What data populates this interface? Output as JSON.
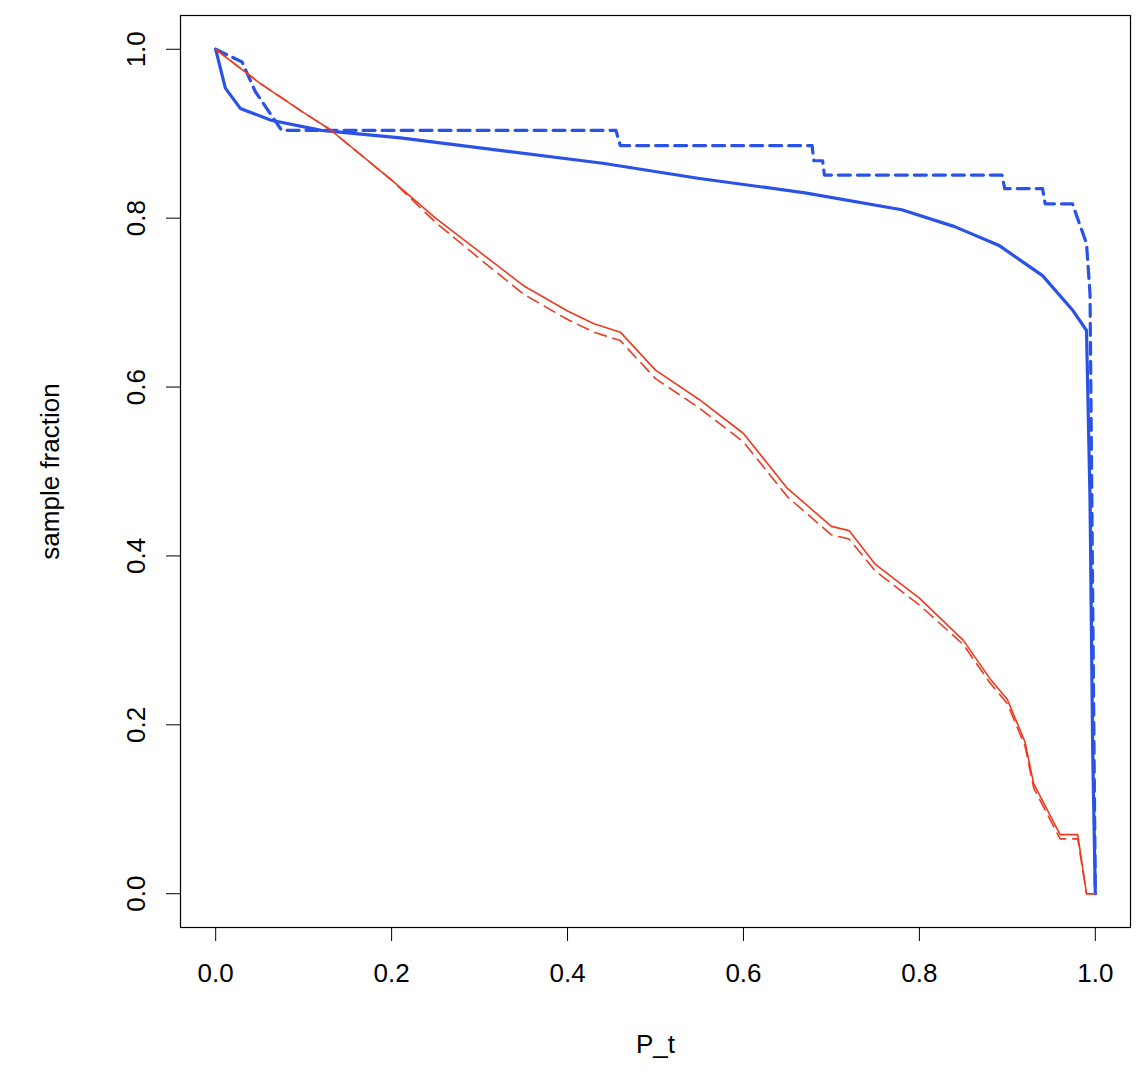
{
  "chart_data": {
    "type": "line",
    "x_label": "P_t",
    "y_label": "sample fraction",
    "xlim": [
      -0.04,
      1.04
    ],
    "ylim": [
      -0.04,
      1.04
    ],
    "xticks": [
      {
        "value": 0,
        "label": "0.0"
      },
      0.2,
      0.4,
      0.6,
      0.8,
      {
        "value": 1,
        "label": "1.0"
      }
    ],
    "yticks": [
      {
        "value": 0,
        "label": "0.0"
      },
      0.2,
      0.4,
      0.6,
      0.8,
      {
        "value": 1,
        "label": "1.0"
      }
    ],
    "grid": false,
    "series": [
      {
        "color": "#2a52e6",
        "line_style": "solid",
        "x": [
          0,
          0.011,
          0.028,
          0.063,
          0.12,
          0.21,
          0.325,
          0.44,
          0.55,
          0.67,
          0.78,
          0.84,
          0.89,
          0.94,
          0.975,
          0.99,
          0.994,
          0.997,
          1.0
        ],
        "values": [
          1.0,
          0.954,
          0.93,
          0.916,
          0.904,
          0.895,
          0.88,
          0.865,
          0.847,
          0.83,
          0.81,
          0.79,
          0.768,
          0.732,
          0.69,
          0.667,
          0.466,
          0.17,
          0.0
        ]
      },
      {
        "color": "#2a52e6",
        "line_style": "dashed",
        "x": [
          0,
          0.03,
          0.045,
          0.075,
          0.455,
          0.46,
          0.678,
          0.68,
          0.69,
          0.692,
          0.894,
          0.897,
          0.94,
          0.943,
          0.974,
          0.99,
          0.994,
          1.0
        ],
        "values": [
          1.0,
          0.985,
          0.95,
          0.904,
          0.904,
          0.886,
          0.886,
          0.868,
          0.868,
          0.851,
          0.851,
          0.835,
          0.835,
          0.817,
          0.817,
          0.77,
          0.71,
          0.0
        ]
      },
      {
        "color": "#f03a20",
        "line_style": "solid",
        "x": [
          0,
          0.05,
          0.1,
          0.13,
          0.2,
          0.25,
          0.3,
          0.35,
          0.4,
          0.43,
          0.46,
          0.5,
          0.55,
          0.6,
          0.65,
          0.7,
          0.72,
          0.75,
          0.8,
          0.85,
          0.88,
          0.9,
          0.92,
          0.93,
          0.96,
          0.98,
          0.99,
          1.0
        ],
        "values": [
          1.0,
          0.96,
          0.925,
          0.905,
          0.845,
          0.8,
          0.76,
          0.72,
          0.69,
          0.675,
          0.665,
          0.62,
          0.585,
          0.545,
          0.48,
          0.435,
          0.43,
          0.39,
          0.35,
          0.3,
          0.255,
          0.23,
          0.18,
          0.13,
          0.07,
          0.07,
          0.0,
          0.0
        ]
      },
      {
        "color": "#f03a20",
        "line_style": "dashed",
        "x": [
          0,
          0.05,
          0.1,
          0.13,
          0.2,
          0.25,
          0.3,
          0.35,
          0.4,
          0.43,
          0.46,
          0.5,
          0.55,
          0.6,
          0.65,
          0.7,
          0.72,
          0.75,
          0.8,
          0.85,
          0.88,
          0.9,
          0.92,
          0.93,
          0.96,
          0.98,
          0.99,
          1.0
        ],
        "values": [
          1.0,
          0.96,
          0.925,
          0.905,
          0.845,
          0.795,
          0.752,
          0.71,
          0.68,
          0.665,
          0.655,
          0.61,
          0.575,
          0.535,
          0.47,
          0.425,
          0.42,
          0.382,
          0.342,
          0.295,
          0.25,
          0.225,
          0.175,
          0.125,
          0.065,
          0.065,
          0.0,
          0.0
        ]
      }
    ]
  }
}
